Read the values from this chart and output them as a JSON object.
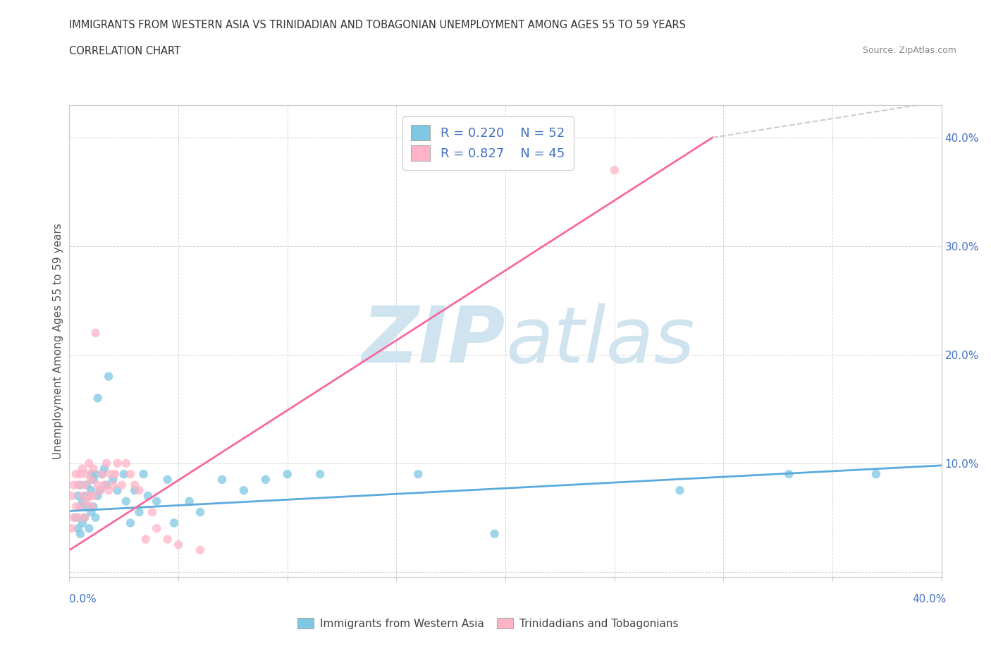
{
  "title_line1": "IMMIGRANTS FROM WESTERN ASIA VS TRINIDADIAN AND TOBAGONIAN UNEMPLOYMENT AMONG AGES 55 TO 59 YEARS",
  "title_line2": "CORRELATION CHART",
  "source_text": "Source: ZipAtlas.com",
  "ylabel": "Unemployment Among Ages 55 to 59 years",
  "xmin": 0.0,
  "xmax": 0.4,
  "ymin": -0.005,
  "ymax": 0.43,
  "xticks": [
    0.0,
    0.05,
    0.1,
    0.15,
    0.2,
    0.25,
    0.3,
    0.35,
    0.4
  ],
  "yticks": [
    0.0,
    0.1,
    0.2,
    0.3,
    0.4
  ],
  "right_ytick_labels": [
    "",
    "10.0%",
    "20.0%",
    "30.0%",
    "40.0%"
  ],
  "blue_R": 0.22,
  "blue_N": 52,
  "pink_R": 0.827,
  "pink_N": 45,
  "blue_color": "#7ec8e3",
  "pink_color": "#ffb3c6",
  "blue_line_color": "#5aaadc",
  "pink_line_color": "#f768a1",
  "legend_text_color": "#4472c4",
  "watermark_color": "#d0e4f0",
  "blue_scatter_x": [
    0.003,
    0.004,
    0.004,
    0.005,
    0.005,
    0.005,
    0.006,
    0.006,
    0.007,
    0.007,
    0.008,
    0.008,
    0.009,
    0.009,
    0.01,
    0.01,
    0.01,
    0.011,
    0.011,
    0.012,
    0.012,
    0.013,
    0.013,
    0.014,
    0.015,
    0.016,
    0.017,
    0.018,
    0.02,
    0.022,
    0.025,
    0.026,
    0.028,
    0.03,
    0.032,
    0.034,
    0.036,
    0.04,
    0.045,
    0.048,
    0.055,
    0.06,
    0.07,
    0.08,
    0.09,
    0.1,
    0.115,
    0.16,
    0.195,
    0.28,
    0.33,
    0.37
  ],
  "blue_scatter_y": [
    0.05,
    0.04,
    0.07,
    0.035,
    0.06,
    0.08,
    0.045,
    0.065,
    0.05,
    0.07,
    0.06,
    0.08,
    0.04,
    0.07,
    0.055,
    0.075,
    0.09,
    0.06,
    0.085,
    0.05,
    0.09,
    0.07,
    0.16,
    0.075,
    0.09,
    0.095,
    0.08,
    0.18,
    0.085,
    0.075,
    0.09,
    0.065,
    0.045,
    0.075,
    0.055,
    0.09,
    0.07,
    0.065,
    0.085,
    0.045,
    0.065,
    0.055,
    0.085,
    0.075,
    0.085,
    0.09,
    0.09,
    0.09,
    0.035,
    0.075,
    0.09,
    0.09
  ],
  "pink_scatter_x": [
    0.001,
    0.001,
    0.002,
    0.002,
    0.003,
    0.003,
    0.004,
    0.004,
    0.005,
    0.005,
    0.006,
    0.006,
    0.007,
    0.007,
    0.008,
    0.008,
    0.009,
    0.009,
    0.01,
    0.01,
    0.011,
    0.011,
    0.012,
    0.013,
    0.014,
    0.015,
    0.016,
    0.017,
    0.018,
    0.019,
    0.02,
    0.021,
    0.022,
    0.024,
    0.026,
    0.028,
    0.03,
    0.032,
    0.035,
    0.038,
    0.04,
    0.045,
    0.05,
    0.06,
    0.25
  ],
  "pink_scatter_y": [
    0.04,
    0.07,
    0.05,
    0.08,
    0.06,
    0.09,
    0.05,
    0.08,
    0.06,
    0.09,
    0.07,
    0.095,
    0.05,
    0.08,
    0.065,
    0.09,
    0.07,
    0.1,
    0.06,
    0.085,
    0.07,
    0.095,
    0.22,
    0.08,
    0.075,
    0.09,
    0.08,
    0.1,
    0.075,
    0.09,
    0.08,
    0.09,
    0.1,
    0.08,
    0.1,
    0.09,
    0.08,
    0.075,
    0.03,
    0.055,
    0.04,
    0.03,
    0.025,
    0.02,
    0.37
  ],
  "blue_trend_x": [
    0.0,
    0.4
  ],
  "blue_trend_y": [
    0.056,
    0.098
  ],
  "pink_trend_x": [
    0.0,
    0.295
  ],
  "pink_trend_y": [
    0.02,
    0.4
  ]
}
